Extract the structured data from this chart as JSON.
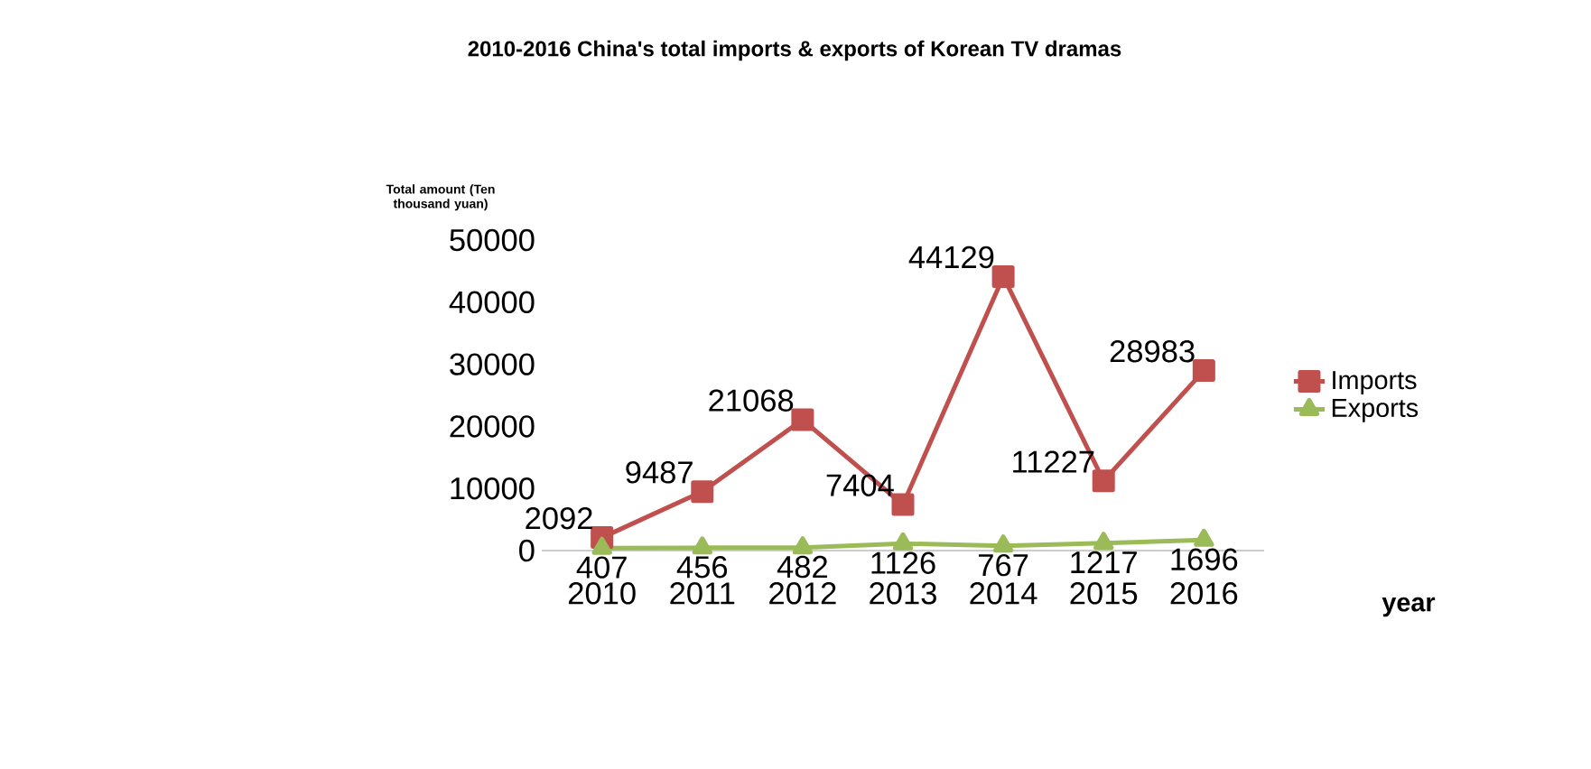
{
  "chart_data": {
    "type": "line",
    "title": "2010-2016 China's total imports & exports of Korean TV dramas",
    "ylabel": "Total amount (Ten thousand yuan)",
    "xlabel": "year",
    "categories": [
      "2010",
      "2011",
      "2012",
      "2013",
      "2014",
      "2015",
      "2016"
    ],
    "series": [
      {
        "name": "Imports",
        "color": "#c0504d",
        "marker": "square",
        "values": [
          2092,
          9487,
          21068,
          7404,
          44129,
          11227,
          28983
        ]
      },
      {
        "name": "Exports",
        "color": "#9bbb59",
        "marker": "triangle",
        "values": [
          407,
          456,
          482,
          1126,
          767,
          1217,
          1696
        ]
      }
    ],
    "ylim": [
      0,
      50000
    ],
    "yticks": [
      0,
      10000,
      20000,
      30000,
      40000,
      50000
    ],
    "legend": "right",
    "data_labels": true,
    "grid": false
  }
}
